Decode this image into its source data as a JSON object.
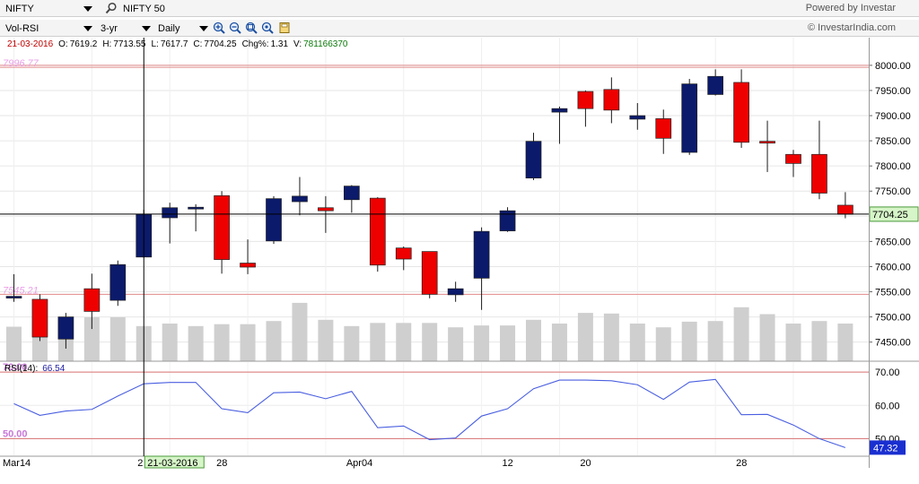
{
  "toolbar": {
    "symbol": "NIFTY",
    "index_name": "NIFTY 50",
    "indicator": "Vol-RSI",
    "range": "3-yr",
    "interval": "Daily",
    "powered_by": "Powered by Investar",
    "copyright": "© InvestarIndia.com"
  },
  "ohlc_bar": {
    "date": "21-03-2016",
    "o_label": "O:",
    "o": "7619.2",
    "h_label": "H:",
    "h": "7713.55",
    "l_label": "L:",
    "l": "7617.7",
    "c_label": "C:",
    "c": "7704.25",
    "chg_label": "Chg%:",
    "chg": "1.31",
    "v_label": "V:",
    "v": "781166370"
  },
  "chart_data": [
    {
      "type": "candlestick",
      "y_ticks": [
        7450,
        7500,
        7550,
        7600,
        7650,
        7700,
        7750,
        7800,
        7850,
        7900,
        7950,
        8000
      ],
      "y_tick_labels": [
        "7450.00",
        "7500.00",
        "7550.00",
        "7600.00",
        "7650.00",
        "7700.00",
        "7750.00",
        "7800.00",
        "7850.00",
        "7900.00",
        "7950.00",
        "8000.00"
      ],
      "ylim": [
        7412,
        8055
      ],
      "x_tick_labels": [
        {
          "label": "Mar14",
          "index": 0
        },
        {
          "label": "28",
          "index": 8
        },
        {
          "label": "Apr04",
          "index": 13
        },
        {
          "label": "12",
          "index": 19
        },
        {
          "label": "20",
          "index": 22
        },
        {
          "label": "28",
          "index": 28
        }
      ],
      "current_price": "7704.25",
      "current_price_value": 7704.25,
      "ref_lines": [
        {
          "value": 8000,
          "label": ""
        },
        {
          "value": 7996,
          "label": "7996.77"
        },
        {
          "value": 7545,
          "label": "7545.21"
        }
      ],
      "crosshair_index": 5,
      "crosshair_label": "21-03-2016",
      "crosshair_partial": "2",
      "candles": [
        {
          "o": 7541,
          "h": 7585,
          "l": 7530,
          "c": 7541
        },
        {
          "o": 7535,
          "h": 7545,
          "l": 7452,
          "c": 7460
        },
        {
          "o": 7456,
          "h": 7508,
          "l": 7437,
          "c": 7500
        },
        {
          "o": 7556,
          "h": 7586,
          "l": 7476,
          "c": 7511
        },
        {
          "o": 7533,
          "h": 7612,
          "l": 7522,
          "c": 7604
        },
        {
          "o": 7619,
          "h": 7713,
          "l": 7618,
          "c": 7704
        },
        {
          "o": 7697,
          "h": 7727,
          "l": 7646,
          "c": 7717
        },
        {
          "o": 7715,
          "h": 7724,
          "l": 7670,
          "c": 7718
        },
        {
          "o": 7741,
          "h": 7750,
          "l": 7586,
          "c": 7614
        },
        {
          "o": 7607,
          "h": 7654,
          "l": 7585,
          "c": 7599
        },
        {
          "o": 7651,
          "h": 7740,
          "l": 7645,
          "c": 7735
        },
        {
          "o": 7729,
          "h": 7778,
          "l": 7702,
          "c": 7740
        },
        {
          "o": 7717,
          "h": 7740,
          "l": 7667,
          "c": 7711
        },
        {
          "o": 7733,
          "h": 7762,
          "l": 7707,
          "c": 7760
        },
        {
          "o": 7736,
          "h": 7738,
          "l": 7590,
          "c": 7603
        },
        {
          "o": 7637,
          "h": 7640,
          "l": 7593,
          "c": 7615
        },
        {
          "o": 7630,
          "h": 7630,
          "l": 7537,
          "c": 7545
        },
        {
          "o": 7544,
          "h": 7570,
          "l": 7530,
          "c": 7556
        },
        {
          "o": 7577,
          "h": 7678,
          "l": 7514,
          "c": 7670
        },
        {
          "o": 7671,
          "h": 7718,
          "l": 7669,
          "c": 7711
        },
        {
          "o": 7776,
          "h": 7866,
          "l": 7772,
          "c": 7849
        },
        {
          "o": 7907,
          "h": 7918,
          "l": 7844,
          "c": 7914
        },
        {
          "o": 7948,
          "h": 7950,
          "l": 7878,
          "c": 7914
        },
        {
          "o": 7952,
          "h": 7976,
          "l": 7885,
          "c": 7911
        },
        {
          "o": 7893,
          "h": 7925,
          "l": 7872,
          "c": 7900
        },
        {
          "o": 7894,
          "h": 7912,
          "l": 7824,
          "c": 7855
        },
        {
          "o": 7827,
          "h": 7973,
          "l": 7822,
          "c": 7963
        },
        {
          "o": 7942,
          "h": 7992,
          "l": 7940,
          "c": 7978
        },
        {
          "o": 7966,
          "h": 7992,
          "l": 7836,
          "c": 7847
        },
        {
          "o": 7849,
          "h": 7890,
          "l": 7788,
          "c": 7847
        },
        {
          "o": 7823,
          "h": 7832,
          "l": 7778,
          "c": 7805
        },
        {
          "o": 7823,
          "h": 7890,
          "l": 7734,
          "c": 7746
        },
        {
          "o": 7722,
          "h": 7748,
          "l": 7696,
          "c": 7704
        }
      ],
      "volume": [
        0.55,
        0.58,
        0.6,
        0.7,
        0.7,
        0.56,
        0.6,
        0.56,
        0.59,
        0.59,
        0.64,
        0.93,
        0.66,
        0.56,
        0.61,
        0.61,
        0.61,
        0.54,
        0.57,
        0.57,
        0.66,
        0.6,
        0.77,
        0.76,
        0.6,
        0.54,
        0.63,
        0.64,
        0.86,
        0.75,
        0.6,
        0.64,
        0.6
      ]
    },
    {
      "type": "line",
      "title": "RSI(14):",
      "title_value": "66.54",
      "ylim": [
        45,
        73
      ],
      "y_ticks": [
        50,
        60,
        70
      ],
      "y_tick_labels": [
        "50.00",
        "60.00",
        "70.00"
      ],
      "ref_lines": [
        {
          "value": 70,
          "label": "70.00"
        },
        {
          "value": 50,
          "label": "50.00"
        }
      ],
      "current_value": "47.32",
      "current_value_num": 47.32,
      "values": [
        60.5,
        57,
        58.3,
        58.8,
        62.8,
        66.5,
        66.9,
        66.9,
        59,
        57.8,
        63.8,
        64,
        62,
        64.2,
        53.3,
        53.8,
        49.7,
        50.2,
        56.8,
        59,
        65,
        67.6,
        67.6,
        67.4,
        66.2,
        61.8,
        67,
        67.8,
        57.2,
        57.3,
        54.1,
        50,
        47.32
      ]
    }
  ]
}
